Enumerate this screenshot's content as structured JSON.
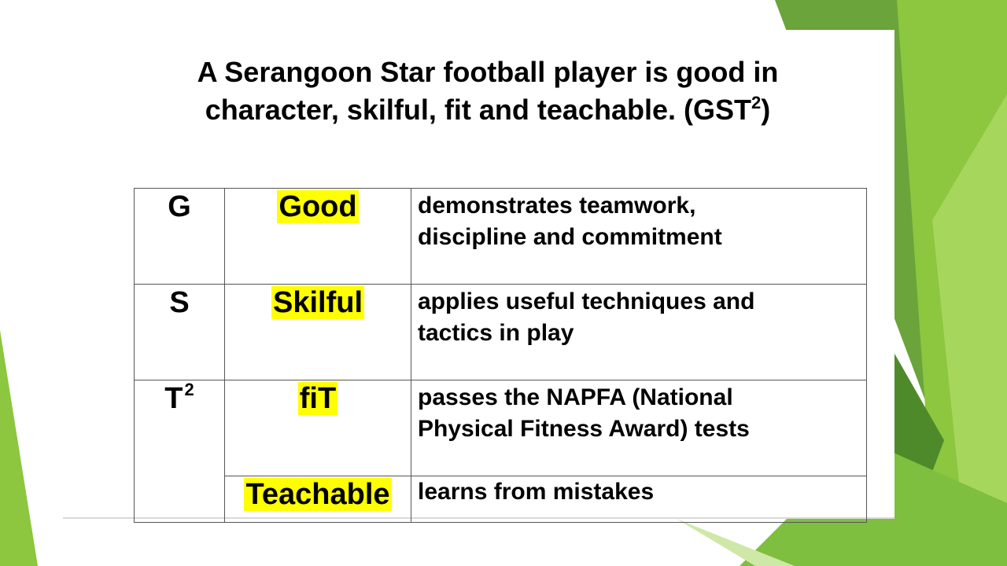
{
  "slide": {
    "title_line1": "A Serangoon Star football player is good in",
    "title_line2_pre": "character, skilful, fit and teachable. (GST",
    "title_sup": "2",
    "title_line2_post": ")"
  },
  "table": {
    "rows": [
      {
        "letter": "G",
        "word": "Good",
        "desc_line1": "demonstrates teamwork,",
        "desc_line2": "discipline and commitment"
      },
      {
        "letter": "S",
        "word": "Skilful",
        "desc_line1": "applies useful techniques and",
        "desc_line2": "tactics in play"
      },
      {
        "letter": "T",
        "letter_sup": "2",
        "word": "fiT",
        "desc_line1": "passes the NAPFA (National",
        "desc_line2": "Physical Fitness Award) tests"
      },
      {
        "word": "Teachable",
        "desc_line1": "learns from mistakes"
      }
    ]
  },
  "colors": {
    "highlight": "#ffff00",
    "green_light": "#92d050",
    "green_dark": "#5e9e32"
  }
}
